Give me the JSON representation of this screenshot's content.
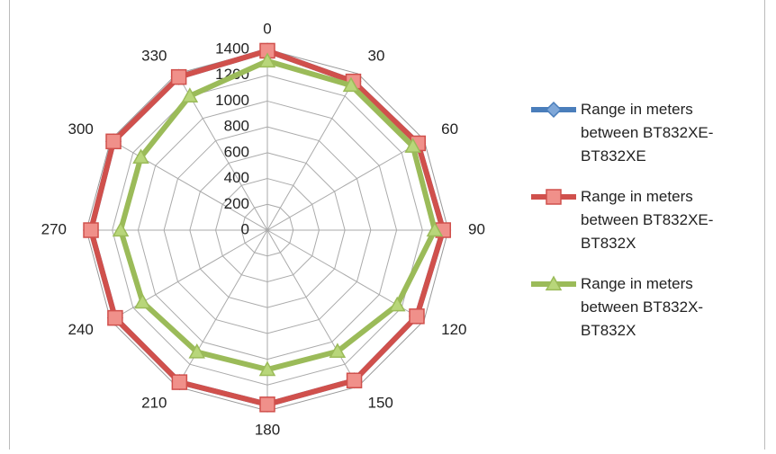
{
  "chart_data": {
    "type": "radar",
    "categories": [
      "0",
      "30",
      "60",
      "90",
      "120",
      "150",
      "180",
      "210",
      "240",
      "270",
      "300",
      "330"
    ],
    "ylim": [
      0,
      1400
    ],
    "yticks": [
      0,
      200,
      400,
      600,
      800,
      1000,
      1200,
      1400
    ],
    "grid": true,
    "legend": "right",
    "series": [
      {
        "name": "Range in meters between BT832XE-BT832XE",
        "color": "#4a7ebb",
        "marker": "diamond",
        "values": [
          1390,
          1330,
          1345,
          1360,
          1335,
          1345,
          1350,
          1360,
          1360,
          1365,
          1375,
          1370
        ]
      },
      {
        "name": "Range in meters between BT832XE-BT832X",
        "color": "#d0504c",
        "marker": "square",
        "values": [
          1390,
          1330,
          1345,
          1360,
          1335,
          1345,
          1350,
          1360,
          1360,
          1365,
          1375,
          1370
        ]
      },
      {
        "name": "Range in meters between BT832X-BT832X",
        "color": "#9bbb59",
        "marker": "triangle",
        "values": [
          1310,
          1295,
          1300,
          1295,
          1160,
          1085,
          1080,
          1090,
          1115,
          1135,
          1130,
          1200
        ]
      }
    ]
  }
}
